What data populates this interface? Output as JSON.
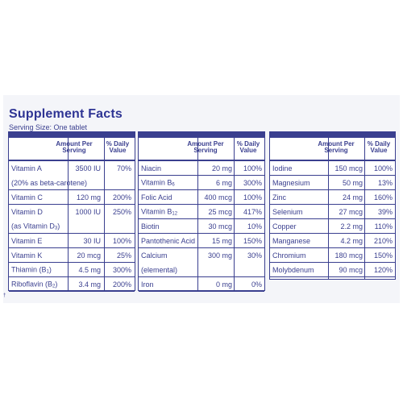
{
  "title": "Supplement Facts",
  "serving": "Serving Size: One tablet",
  "headers": {
    "amount_line1": "Amount Per",
    "amount_line2": "Serving",
    "dv_line1": "% Daily",
    "dv_line2": "Value"
  },
  "columns": [
    {
      "rows": [
        {
          "name": "Vitamin A",
          "amount": "3500 IU",
          "dv": "70%",
          "line": false
        },
        {
          "name": "(20% as beta-carotene)",
          "amount": "",
          "dv": ""
        },
        {
          "name": "Vitamin C",
          "amount": "120 mg",
          "dv": "200%"
        },
        {
          "name": "Vitamin D",
          "amount": "1000 IU",
          "dv": "250%",
          "line": false
        },
        {
          "name": "(as Vitamin D",
          "sub": "3",
          "suffix": ")",
          "amount": "",
          "dv": ""
        },
        {
          "name": "Vitamin E",
          "amount": "30 IU",
          "dv": "100%"
        },
        {
          "name": "Vitamin K",
          "amount": "20 mcg",
          "dv": "25%"
        },
        {
          "name": "Thiamin (B",
          "sub": "1",
          "suffix": ")",
          "amount": "4.5 mg",
          "dv": "300%"
        },
        {
          "name": "Riboflavin (B",
          "sub": "2",
          "suffix": ")",
          "amount": "3.4 mg",
          "dv": "200%"
        }
      ]
    },
    {
      "rows": [
        {
          "name": "Niacin",
          "amount": "20 mg",
          "dv": "100%"
        },
        {
          "name": "Vitamin B",
          "sub": "6",
          "suffix": "",
          "amount": "6 mg",
          "dv": "300%"
        },
        {
          "name": "Folic Acid",
          "amount": "400 mcg",
          "dv": "100%"
        },
        {
          "name": "Vitamin B",
          "sub": "12",
          "suffix": "",
          "amount": "25 mcg",
          "dv": "417%"
        },
        {
          "name": "Biotin",
          "amount": "30 mcg",
          "dv": "10%"
        },
        {
          "name": "Pantothenic Acid",
          "amount": "15 mg",
          "dv": "150%"
        },
        {
          "name": "Calcium",
          "amount": "300 mg",
          "dv": "30%",
          "line": false
        },
        {
          "name": "(elemental)",
          "amount": "",
          "dv": ""
        },
        {
          "name": "Iron",
          "amount": "0 mg",
          "dv": "0%"
        }
      ]
    },
    {
      "rows": [
        {
          "name": "Iodine",
          "amount": "150 mcg",
          "dv": "100%"
        },
        {
          "name": "Magnesium",
          "amount": "50 mg",
          "dv": "13%"
        },
        {
          "name": "Zinc",
          "amount": "24 mg",
          "dv": "160%"
        },
        {
          "name": "Selenium",
          "amount": "27 mcg",
          "dv": "39%"
        },
        {
          "name": "Copper",
          "amount": "2.2 mg",
          "dv": "110%"
        },
        {
          "name": "Manganese",
          "amount": "4.2 mg",
          "dv": "210%"
        },
        {
          "name": "Chromium",
          "amount": "180 mcg",
          "dv": "150%"
        },
        {
          "name": "Molybdenum",
          "amount": "90 mcg",
          "dv": "120%"
        }
      ]
    }
  ],
  "footnote": "†"
}
